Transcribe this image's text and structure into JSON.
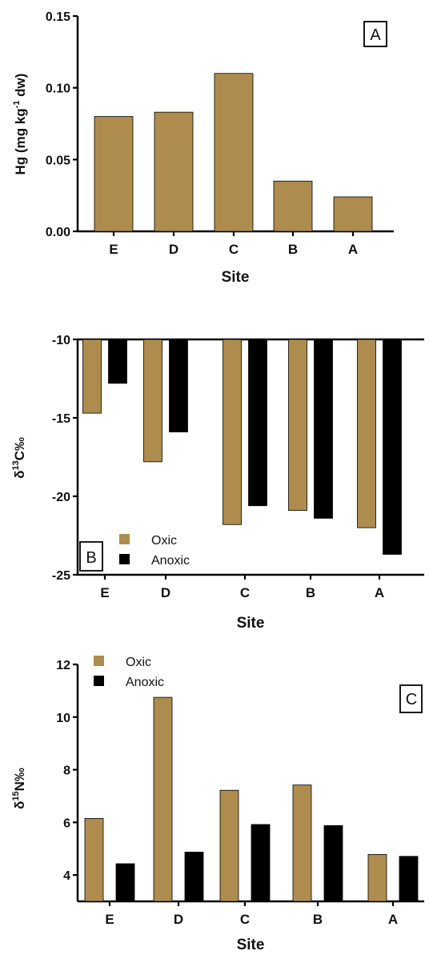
{
  "colors": {
    "oxic": "#ae8c4d",
    "anoxic": "#000000",
    "axis": "#000000"
  },
  "chart_data": [
    {
      "type": "bar",
      "panel_label": "A",
      "categories": [
        "E",
        "D",
        "C",
        "B",
        "A"
      ],
      "series": [
        {
          "values": [
            0.08,
            0.083,
            0.11,
            0.035,
            0.024
          ]
        }
      ],
      "xlabel": "Site",
      "ylabel": {
        "prefix": "Hg (mg kg",
        "sup": "-1",
        "suffix": " dw)"
      },
      "ylim": [
        0,
        0.15
      ],
      "yticks": [
        "0.00",
        "0.05",
        "0.10",
        "0.15"
      ]
    },
    {
      "type": "bar",
      "panel_label": "B",
      "categories": [
        "E",
        "D",
        "C",
        "B",
        "A"
      ],
      "series": [
        {
          "name": "Oxic",
          "values": [
            -14.7,
            -17.8,
            -21.8,
            -20.9,
            -22.0
          ]
        },
        {
          "name": "Anoxic",
          "values": [
            -12.8,
            -15.9,
            -20.6,
            -21.4,
            -23.7
          ]
        }
      ],
      "xlabel": "Site",
      "ylabel": {
        "prefix": "δ",
        "sup": "13",
        "suffix": "C‰"
      },
      "ylim": [
        -25,
        -10
      ],
      "yticks": [
        "-25",
        "-20",
        "-15",
        "-10"
      ],
      "legend": "bottom-left",
      "bars_from_top": true
    },
    {
      "type": "bar",
      "panel_label": "C",
      "categories": [
        "E",
        "D",
        "C",
        "B",
        "A"
      ],
      "series": [
        {
          "name": "Oxic",
          "values": [
            6.15,
            10.75,
            7.22,
            7.42,
            4.78
          ]
        },
        {
          "name": "Anoxic",
          "values": [
            4.43,
            4.87,
            5.92,
            5.88,
            4.71
          ]
        }
      ],
      "xlabel": "Site",
      "ylabel": {
        "prefix": "δ",
        "sup": "15",
        "suffix": "N‰"
      },
      "ylim": [
        3,
        12
      ],
      "yticks": [
        "4",
        "6",
        "8",
        "10",
        "12"
      ],
      "legend": "top-left"
    }
  ]
}
